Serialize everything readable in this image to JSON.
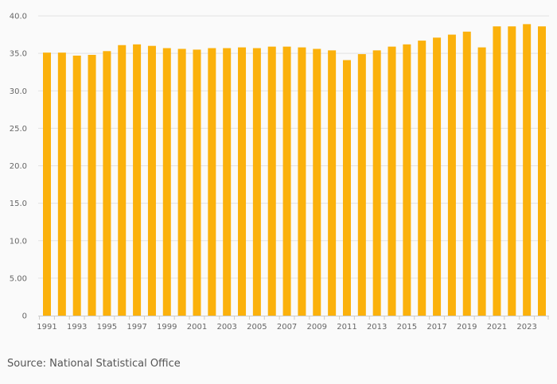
{
  "chart_data": {
    "type": "bar",
    "categories": [
      "1991",
      "1992",
      "1993",
      "1994",
      "1995",
      "1996",
      "1997",
      "1998",
      "1999",
      "2000",
      "2001",
      "2002",
      "2003",
      "2004",
      "2005",
      "2006",
      "2007",
      "2008",
      "2009",
      "2010",
      "2011",
      "2012",
      "2013",
      "2014",
      "2015",
      "2016",
      "2017",
      "2018",
      "2019",
      "2020",
      "2021",
      "2022",
      "2023",
      "2024"
    ],
    "x_tick_labels": [
      "1991",
      "1993",
      "1995",
      "1997",
      "1999",
      "2001",
      "2003",
      "2005",
      "2007",
      "2009",
      "2011",
      "2013",
      "2015",
      "2017",
      "2019",
      "2021",
      "2023"
    ],
    "series": [
      {
        "values": [
          35.1,
          35.1,
          34.7,
          34.8,
          35.3,
          36.1,
          36.2,
          36.0,
          35.7,
          35.6,
          35.5,
          35.7,
          35.7,
          35.8,
          35.7,
          35.9,
          35.9,
          35.8,
          35.6,
          35.4,
          34.1,
          34.9,
          35.4,
          35.9,
          36.2,
          36.7,
          37.1,
          37.5,
          37.9,
          35.8,
          38.6,
          38.6,
          38.9,
          38.6
        ],
        "color": "#fbb10c"
      }
    ],
    "ylim": [
      0,
      40
    ],
    "y_ticks": [
      0,
      5,
      10,
      15,
      20,
      25,
      30,
      35,
      40
    ],
    "y_tick_labels": [
      "0",
      "5.00",
      "10.0",
      "15.0",
      "20.0",
      "25.0",
      "30.0",
      "35.0",
      "40.0"
    ],
    "grid": true,
    "legend": "none",
    "title": "",
    "xlabel": "",
    "ylabel": ""
  },
  "source_note": "Source: National Statistical Office"
}
